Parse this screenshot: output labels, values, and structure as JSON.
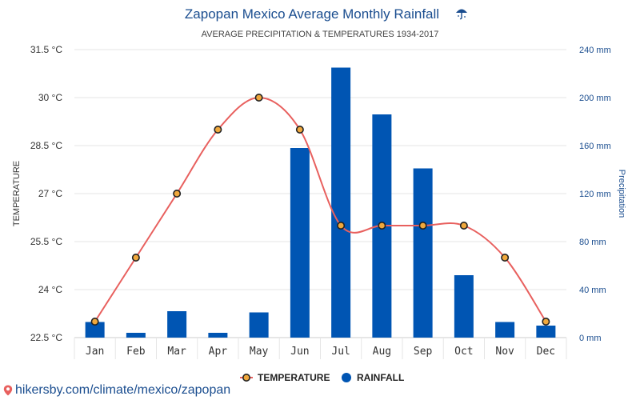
{
  "chart_data": {
    "type": "bar",
    "title": "Zapopan Mexico Average Monthly Rainfall",
    "subtitle": "AVERAGE PRECIPITATION & TEMPERATURES 1934-2017",
    "categories": [
      "Jan",
      "Feb",
      "Mar",
      "Apr",
      "May",
      "Jun",
      "Jul",
      "Aug",
      "Sep",
      "Oct",
      "Nov",
      "Dec"
    ],
    "series": [
      {
        "name": "TEMPERATURE",
        "kind": "line",
        "axis": "left",
        "color": "#e8605e",
        "marker_color": "#f0a83c",
        "values": [
          23,
          25,
          27,
          29,
          30,
          29,
          26,
          26,
          26,
          26,
          25,
          23
        ]
      },
      {
        "name": "RAINFALL",
        "kind": "bar",
        "axis": "right",
        "color": "#0055b3",
        "values": [
          13,
          4,
          22,
          4,
          21,
          158,
          225,
          186,
          141,
          52,
          13,
          10
        ]
      }
    ],
    "y_left": {
      "label": "TEMPERATURE",
      "range": [
        22.5,
        31.5
      ],
      "ticks": [
        "22.5 °C",
        "24 °C",
        "25.5 °C",
        "27 °C",
        "28.5 °C",
        "30 °C",
        "31.5 °C"
      ]
    },
    "y_right": {
      "label": "Precipitation",
      "range": [
        0,
        240
      ],
      "ticks": [
        "0 mm",
        "40 mm",
        "80 mm",
        "120 mm",
        "160 mm",
        "200 mm",
        "240 mm"
      ]
    },
    "grid": true,
    "legend": "bottom-center"
  },
  "footer": {
    "source_link": "hikersby.com/climate/mexico/zapopan"
  }
}
